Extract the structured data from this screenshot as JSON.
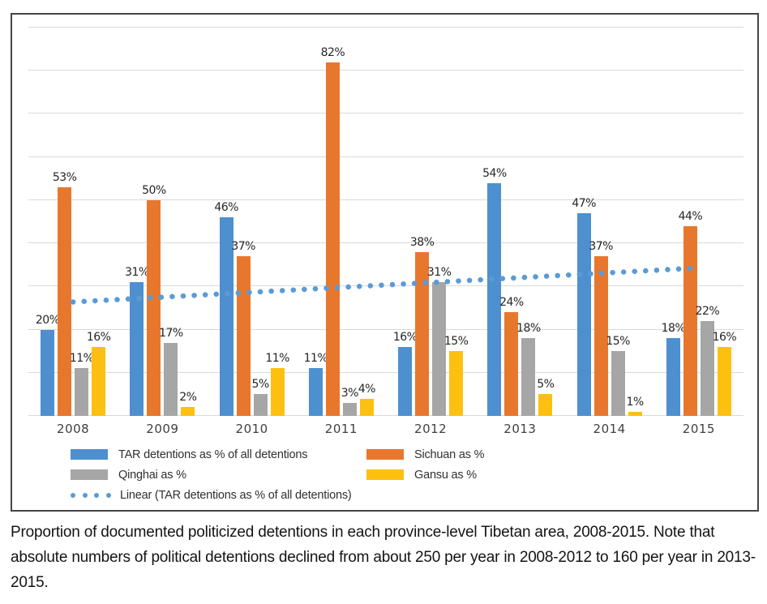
{
  "figure": {
    "caption": "Proportion of documented politicized detentions in each province-level Tibetan area, 2008-2015. Note that absolute numbers of political detentions declined from about 250 per year in 2008-2012 to 160 per year in 2013-2015."
  },
  "chart_data": {
    "type": "bar",
    "title": "",
    "categories": [
      "2008",
      "2009",
      "2010",
      "2011",
      "2012",
      "2013",
      "2014",
      "2015"
    ],
    "series": [
      {
        "name": "TAR detentions as % of all detentions",
        "color": "#4E8FD0",
        "values": [
          20,
          31,
          46,
          11,
          16,
          54,
          47,
          18
        ]
      },
      {
        "name": "Sichuan as %",
        "color": "#E8772E",
        "values": [
          53,
          50,
          37,
          82,
          38,
          24,
          37,
          44
        ]
      },
      {
        "name": "Qinghai as %",
        "color": "#A6A6A6",
        "values": [
          11,
          17,
          5,
          3,
          31,
          18,
          15,
          22
        ]
      },
      {
        "name": "Gansu as %",
        "color": "#FDC010",
        "values": [
          16,
          2,
          11,
          4,
          15,
          5,
          1,
          16
        ]
      }
    ],
    "trendline": {
      "name": "Linear (TAR detentions as % of all detentions)",
      "color": "#5B9BD5",
      "values_pct": [
        26.4,
        27.5,
        28.7,
        29.8,
        30.9,
        32.0,
        33.2,
        34.3
      ]
    },
    "value_label_suffix": "%",
    "xlabel": "",
    "ylabel": "",
    "ylim": [
      0,
      90
    ],
    "gridline_step": 10,
    "grid": true,
    "gridline_color": "#d9d9d9",
    "legend_position": "bottom",
    "yaxis_labels_visible": false
  }
}
